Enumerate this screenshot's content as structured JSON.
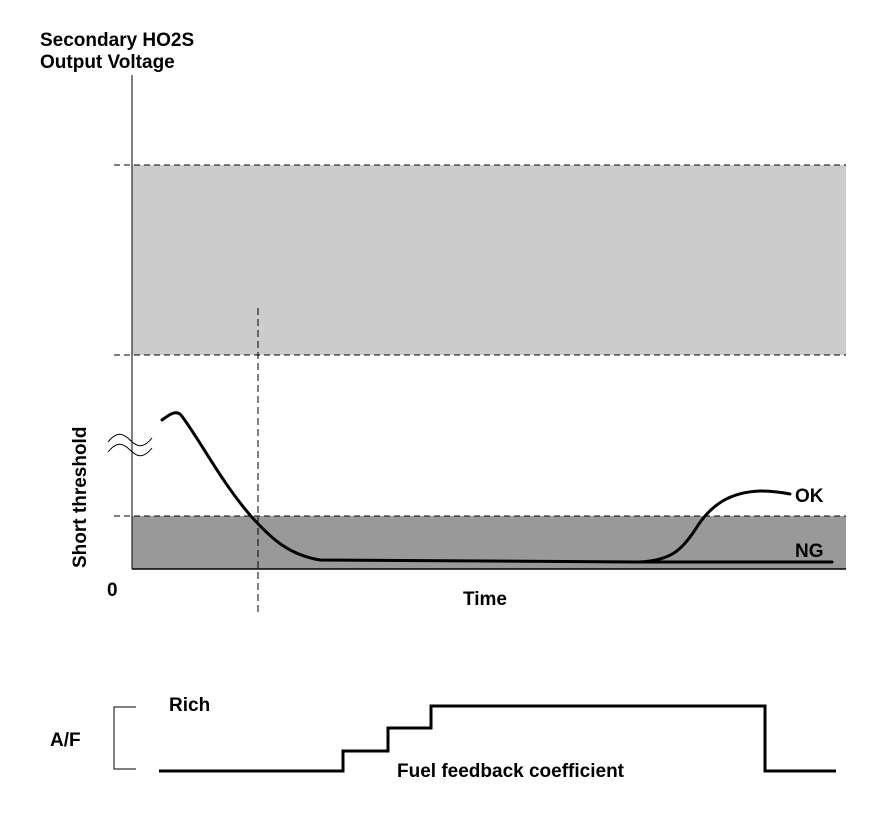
{
  "upper_chart": {
    "y_axis_title_line1": "Secondary HO2S",
    "y_axis_title_line2": "Output Voltage",
    "y_axis_side_label": "Short threshold",
    "origin_label": "0",
    "x_axis_label": "Time",
    "curve_ok_label": "OK",
    "curve_ng_label": "NG",
    "band_light_color": "#cccccc",
    "band_dark_color": "#999999"
  },
  "lower_chart": {
    "y_axis_label": "A/F",
    "rich_label": "Rich",
    "trace_label": "Fuel feedback coefficient"
  }
}
